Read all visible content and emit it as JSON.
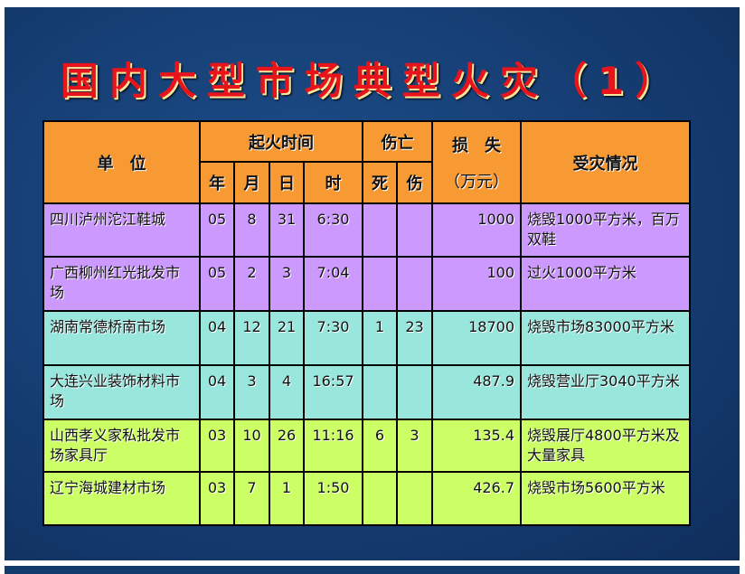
{
  "title": "国内大型市场典型火灾（1）",
  "header": {
    "unit": "单　位",
    "fire_time": "起火时间",
    "year": "年",
    "month": "月",
    "day": "日",
    "hour": "时",
    "casualties": "伤亡",
    "dead": "死",
    "injured": "伤",
    "loss": "损　失",
    "loss_unit": "（万元）",
    "damage": "受灾情况"
  },
  "colors": {
    "header": "#f79a33",
    "rows_1_2": "#cc99ff",
    "rows_3_4": "#99e6dd",
    "rows_5_6": "#ccff66",
    "title": "#e8141c"
  },
  "rows": [
    {
      "unit": "四川泸州沱江鞋城",
      "year": "05",
      "month": "8",
      "day": "31",
      "hour": "6:30",
      "dead": "",
      "injured": "",
      "loss": "1000",
      "damage": "烧毁1000平方米，百万双鞋"
    },
    {
      "unit": "广西柳州红光批发市场",
      "year": "05",
      "month": "2",
      "day": "3",
      "hour": "7:04",
      "dead": "",
      "injured": "",
      "loss": "100",
      "damage": "过火1000平方米"
    },
    {
      "unit": "湖南常德桥南市场",
      "year": "04",
      "month": "12",
      "day": "21",
      "hour": "7:30",
      "dead": "1",
      "injured": "23",
      "loss": "18700",
      "damage": "烧毁市场83000平方米"
    },
    {
      "unit": "大连兴业装饰材料市场",
      "year": "04",
      "month": "3",
      "day": "4",
      "hour": "16:57",
      "dead": "",
      "injured": "",
      "loss": "487.9",
      "damage": "烧毁营业厅3040平方米"
    },
    {
      "unit": "山西孝义家私批发市场家具厅",
      "year": "03",
      "month": "10",
      "day": "26",
      "hour": "11:16",
      "dead": "6",
      "injured": "3",
      "loss": "135.4",
      "damage": "烧毁展厅4800平方米及大量家具"
    },
    {
      "unit": "辽宁海城建材市场",
      "year": "03",
      "month": "7",
      "day": "1",
      "hour": "1:50",
      "dead": "",
      "injured": "",
      "loss": "426.7",
      "damage": "烧毁市场5600平方米"
    }
  ]
}
